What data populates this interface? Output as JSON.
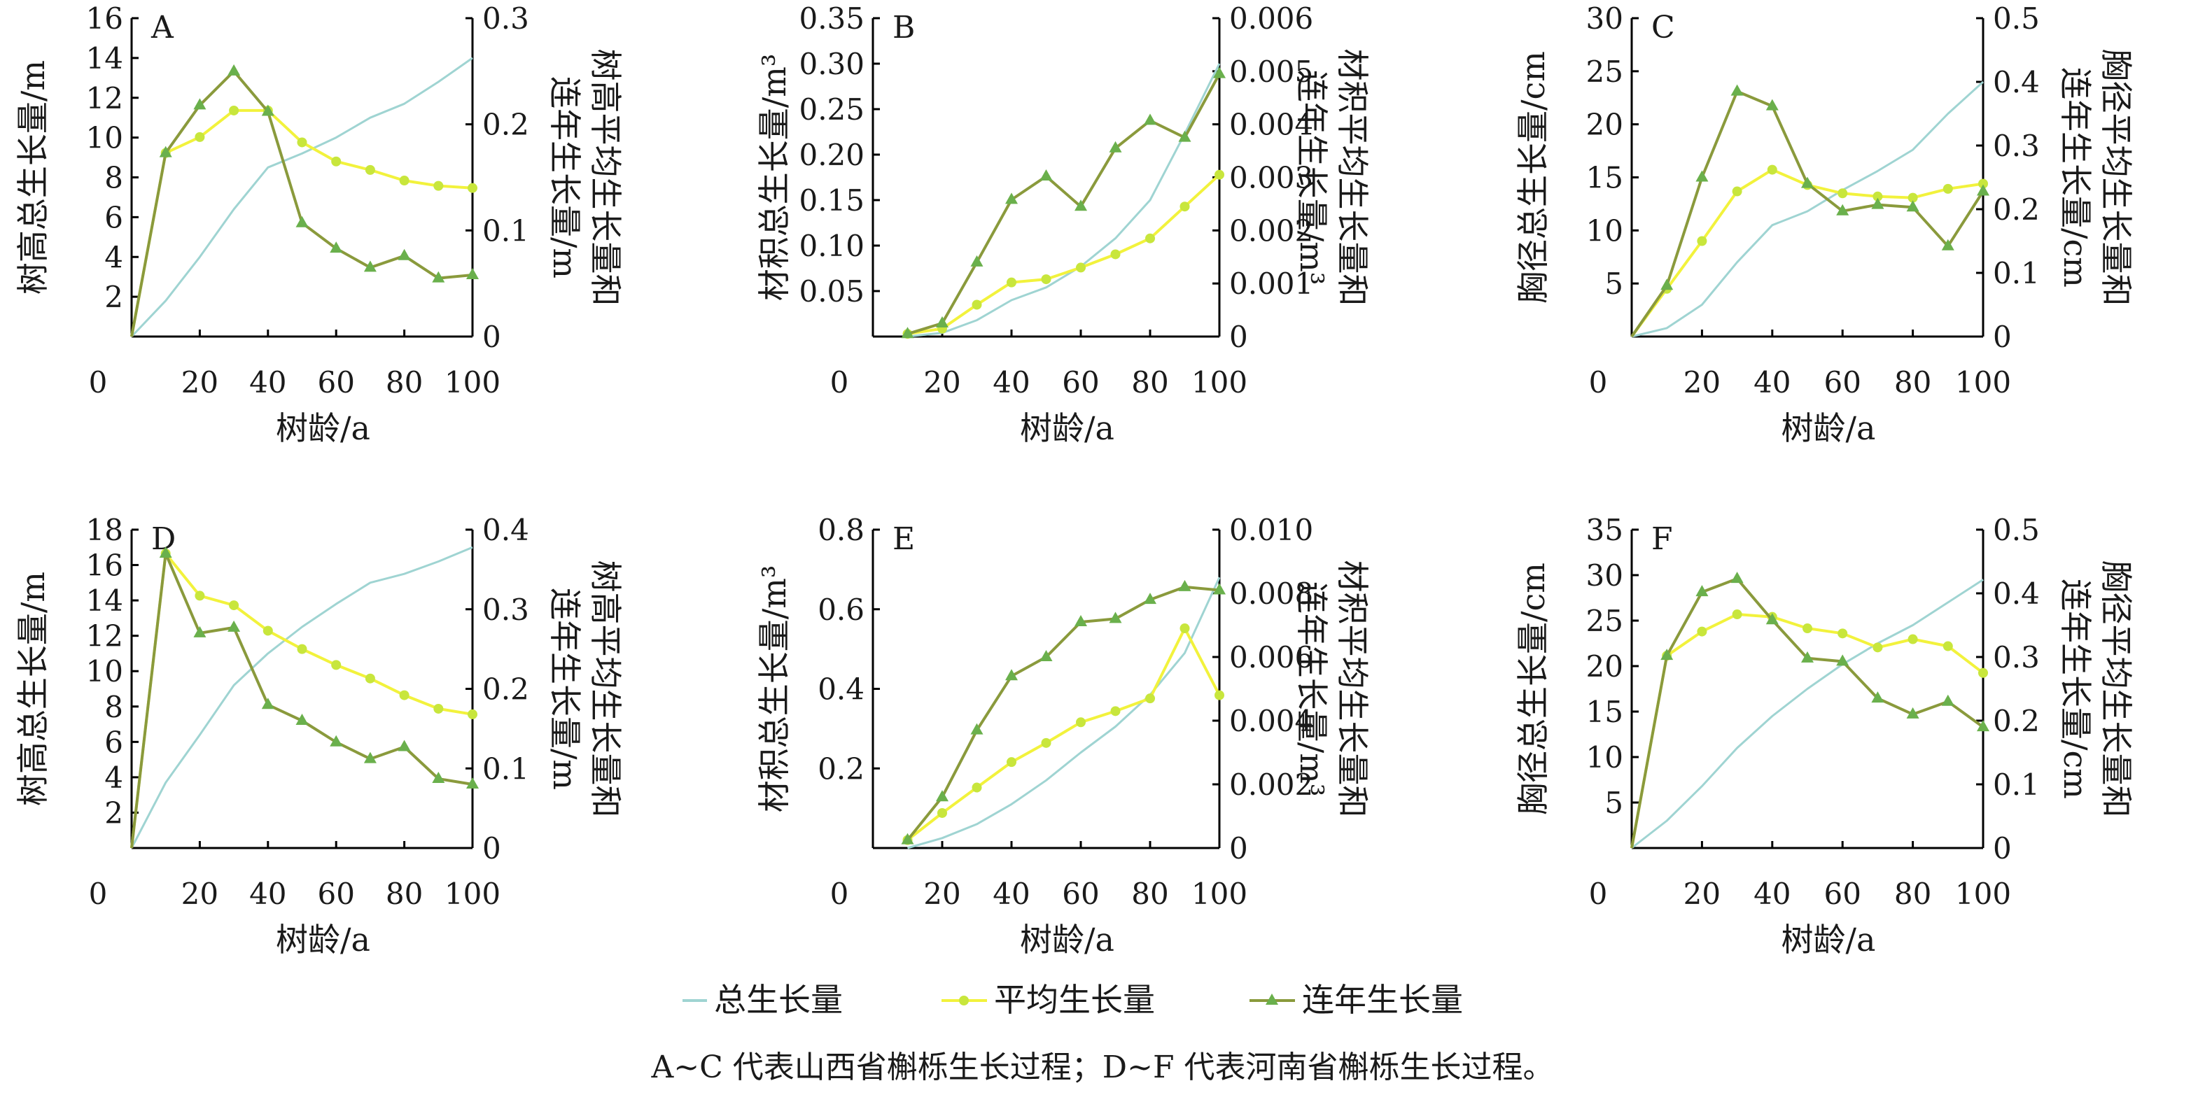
{
  "colors": {
    "total": "#9fd4d2",
    "mean": "#f2f23c",
    "mean_marker": "#c8e63c",
    "annual": "#8a9a3c",
    "annual_marker": "#6ab04c",
    "axis": "#000000"
  },
  "legend": {
    "total": "总生长量",
    "mean": "平均生长量",
    "annual": "连年生长量"
  },
  "caption": "A~C 代表山西省槲栎生长过程；D~F 代表河南省槲栎生长过程。",
  "chart_data": [
    {
      "panel": "A",
      "type": "line",
      "xlabel": "树龄/a",
      "ylabel": "树高总生长量/m",
      "ylabel2": [
        "树高平均生长量和",
        "连年生长量/m"
      ],
      "xlim": [
        0,
        100
      ],
      "xticks": [
        "0",
        "20",
        "40",
        "60",
        "80",
        "100"
      ],
      "ylim": [
        0,
        16
      ],
      "yticks": [
        "2",
        "4",
        "6",
        "8",
        "10",
        "12",
        "14",
        "16"
      ],
      "y2lim": [
        0,
        0.3
      ],
      "y2ticks": [
        "0",
        "0.1",
        "0.2",
        "0.3"
      ],
      "x": [
        0,
        10,
        20,
        30,
        40,
        50,
        60,
        70,
        80,
        90,
        100
      ],
      "series": [
        {
          "key": "total",
          "axis": "left",
          "values": [
            0,
            1.8,
            4.0,
            6.4,
            8.5,
            9.2,
            10.0,
            11.0,
            11.7,
            12.8,
            14.0
          ]
        },
        {
          "key": "mean",
          "axis": "right",
          "values": [
            0,
            0.173,
            0.188,
            0.213,
            0.213,
            0.183,
            0.165,
            0.157,
            0.147,
            0.142,
            0.14
          ]
        },
        {
          "key": "annual",
          "axis": "right",
          "values": [
            0,
            0.173,
            0.218,
            0.25,
            0.212,
            0.107,
            0.083,
            0.065,
            0.076,
            0.055,
            0.058
          ]
        }
      ]
    },
    {
      "panel": "B",
      "type": "line",
      "xlabel": "树龄/a",
      "ylabel": "材积总生长量/m³",
      "ylabel2": [
        "材积平均生长量和",
        "连年生长量/m³"
      ],
      "xlim": [
        0,
        100
      ],
      "xticks": [
        "0",
        "20",
        "40",
        "60",
        "80",
        "100"
      ],
      "ylim": [
        0,
        0.35
      ],
      "yticks": [
        "0.05",
        "0.10",
        "0.15",
        "0.20",
        "0.25",
        "0.30",
        "0.35"
      ],
      "y2lim": [
        0,
        0.006
      ],
      "y2ticks": [
        "0",
        "0.001",
        "0.002",
        "0.003",
        "0.004",
        "0.005",
        "0.006"
      ],
      "x": [
        10,
        20,
        30,
        40,
        50,
        60,
        70,
        80,
        90,
        100
      ],
      "series": [
        {
          "key": "total",
          "axis": "left",
          "values": [
            0.0,
            0.004,
            0.018,
            0.04,
            0.054,
            0.077,
            0.108,
            0.15,
            0.223,
            0.3
          ]
        },
        {
          "key": "mean",
          "axis": "right",
          "values": [
            5e-05,
            0.00015,
            0.0006,
            0.00102,
            0.00108,
            0.0013,
            0.00155,
            0.00185,
            0.00245,
            0.00305
          ]
        },
        {
          "key": "annual",
          "axis": "right",
          "values": [
            5e-05,
            0.00025,
            0.0014,
            0.00258,
            0.00302,
            0.00245,
            0.00355,
            0.00407,
            0.00375,
            0.00495
          ]
        }
      ]
    },
    {
      "panel": "C",
      "type": "line",
      "xlabel": "树龄/a",
      "ylabel": "胸径总生长量/cm",
      "ylabel2": [
        "胸径平均生长量和",
        "连年生长量/cm"
      ],
      "xlim": [
        0,
        100
      ],
      "xticks": [
        "0",
        "20",
        "40",
        "60",
        "80",
        "100"
      ],
      "ylim": [
        0,
        30
      ],
      "yticks": [
        "5",
        "10",
        "15",
        "20",
        "25",
        "30"
      ],
      "y2lim": [
        0,
        0.5
      ],
      "y2ticks": [
        "0",
        "0.1",
        "0.2",
        "0.3",
        "0.4",
        "0.5"
      ],
      "x": [
        0,
        10,
        20,
        30,
        40,
        50,
        60,
        70,
        80,
        90,
        100
      ],
      "series": [
        {
          "key": "total",
          "axis": "left",
          "values": [
            0,
            0.8,
            3.0,
            7.0,
            10.5,
            11.8,
            13.8,
            15.6,
            17.6,
            21.0,
            24.0
          ]
        },
        {
          "key": "mean",
          "axis": "right",
          "values": [
            0,
            0.075,
            0.15,
            0.228,
            0.262,
            0.238,
            0.225,
            0.22,
            0.218,
            0.232,
            0.24
          ]
        },
        {
          "key": "annual",
          "axis": "right",
          "values": [
            0,
            0.08,
            0.25,
            0.385,
            0.362,
            0.24,
            0.197,
            0.207,
            0.203,
            0.142,
            0.228
          ]
        }
      ]
    },
    {
      "panel": "D",
      "type": "line",
      "xlabel": "树龄/a",
      "ylabel": "树高总生长量/m",
      "ylabel2": [
        "树高平均生长量和",
        "连年生长量/m"
      ],
      "xlim": [
        0,
        100
      ],
      "xticks": [
        "0",
        "20",
        "40",
        "60",
        "80",
        "100"
      ],
      "ylim": [
        0,
        18
      ],
      "yticks": [
        "2",
        "4",
        "6",
        "8",
        "10",
        "12",
        "14",
        "16",
        "18"
      ],
      "y2lim": [
        0,
        0.4
      ],
      "y2ticks": [
        "0",
        "0.1",
        "0.2",
        "0.3",
        "0.4"
      ],
      "x": [
        0,
        10,
        20,
        30,
        40,
        50,
        60,
        70,
        80,
        90,
        100
      ],
      "series": [
        {
          "key": "total",
          "axis": "left",
          "values": [
            0,
            3.7,
            6.4,
            9.2,
            11.0,
            12.5,
            13.8,
            15.0,
            15.5,
            16.2,
            17.0
          ]
        },
        {
          "key": "mean",
          "axis": "right",
          "values": [
            0,
            0.37,
            0.317,
            0.305,
            0.273,
            0.25,
            0.23,
            0.213,
            0.192,
            0.175,
            0.168
          ]
        },
        {
          "key": "annual",
          "axis": "right",
          "values": [
            0,
            0.37,
            0.27,
            0.277,
            0.18,
            0.16,
            0.133,
            0.112,
            0.127,
            0.087,
            0.08
          ]
        }
      ]
    },
    {
      "panel": "E",
      "type": "line",
      "xlabel": "树龄/a",
      "ylabel": "材积总生长量/m³",
      "ylabel2": [
        "材积平均生长量和",
        "连年生长量/m³"
      ],
      "xlim": [
        0,
        100
      ],
      "xticks": [
        "0",
        "20",
        "40",
        "60",
        "80",
        "100"
      ],
      "ylim": [
        0,
        0.8
      ],
      "yticks": [
        "0.2",
        "0.4",
        "0.6",
        "0.8"
      ],
      "y2lim": [
        0,
        0.01
      ],
      "y2ticks": [
        "0",
        "0.002",
        "0.004",
        "0.006",
        "0.008",
        "0.010"
      ],
      "x": [
        10,
        20,
        30,
        40,
        50,
        60,
        70,
        80,
        90,
        100
      ],
      "series": [
        {
          "key": "total",
          "axis": "left",
          "values": [
            0.0,
            0.025,
            0.06,
            0.11,
            0.17,
            0.24,
            0.305,
            0.385,
            0.49,
            0.68
          ]
        },
        {
          "key": "mean",
          "axis": "right",
          "values": [
            0.00025,
            0.0011,
            0.0019,
            0.0027,
            0.0033,
            0.00395,
            0.0043,
            0.0047,
            0.0069,
            0.0048
          ]
        },
        {
          "key": "annual",
          "axis": "right",
          "values": [
            0.00025,
            0.0016,
            0.0037,
            0.0054,
            0.006,
            0.0071,
            0.0072,
            0.0078,
            0.0082,
            0.0081
          ]
        }
      ]
    },
    {
      "panel": "F",
      "type": "line",
      "xlabel": "树龄/a",
      "ylabel": "胸径总生长量/cm",
      "ylabel2": [
        "胸径平均生长量和",
        "连年生长量/cm"
      ],
      "xlim": [
        0,
        100
      ],
      "xticks": [
        "0",
        "20",
        "40",
        "60",
        "80",
        "100"
      ],
      "ylim": [
        0,
        35
      ],
      "yticks": [
        "5",
        "10",
        "15",
        "20",
        "25",
        "30",
        "35"
      ],
      "y2lim": [
        0,
        0.5
      ],
      "y2ticks": [
        "0",
        "0.1",
        "0.2",
        "0.3",
        "0.4",
        "0.5"
      ],
      "x": [
        0,
        10,
        20,
        30,
        40,
        50,
        60,
        70,
        80,
        90,
        100
      ],
      "series": [
        {
          "key": "total",
          "axis": "left",
          "values": [
            0,
            3.0,
            6.8,
            11.0,
            14.5,
            17.5,
            20.2,
            22.5,
            24.5,
            27.0,
            29.5
          ]
        },
        {
          "key": "mean",
          "axis": "right",
          "values": [
            0,
            0.302,
            0.34,
            0.367,
            0.363,
            0.345,
            0.337,
            0.315,
            0.328,
            0.317,
            0.275
          ]
        },
        {
          "key": "annual",
          "axis": "right",
          "values": [
            0,
            0.302,
            0.402,
            0.423,
            0.358,
            0.298,
            0.293,
            0.235,
            0.21,
            0.23,
            0.19
          ]
        }
      ]
    }
  ]
}
